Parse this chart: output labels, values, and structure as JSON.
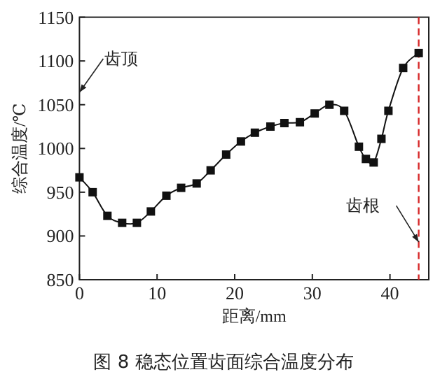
{
  "chart_data": {
    "type": "line",
    "xlabel": "距离/mm",
    "ylabel": "综合温度/℃",
    "x": [
      0,
      1.7,
      3.6,
      5.5,
      7.4,
      9.2,
      11.2,
      13.1,
      15.1,
      16.9,
      18.9,
      20.8,
      22.6,
      24.6,
      26.4,
      28.4,
      30.3,
      32.2,
      34.1,
      36,
      36.9,
      37.9,
      38.9,
      39.8,
      41.7,
      43.7
    ],
    "series": [
      {
        "color": "#111111",
        "values": [
          967,
          950,
          923,
          915,
          915,
          928,
          946,
          955,
          960,
          975,
          993,
          1008,
          1018,
          1025,
          1029,
          1030,
          1040,
          1050,
          1043,
          1002,
          988,
          984,
          1011,
          1043,
          1092,
          1109
        ]
      }
    ],
    "xlim": [
      0,
      45
    ],
    "xticks": [
      0,
      10,
      20,
      30,
      40
    ],
    "ylim": [
      850,
      1150
    ],
    "yticks": [
      850,
      900,
      950,
      1000,
      1050,
      1100,
      1150
    ],
    "marker": "square",
    "line_style": "solid",
    "grid": false,
    "ref_lines": [
      {
        "axis": "x",
        "value": 43.7,
        "color": "#d62728",
        "line_style": "dashed"
      }
    ],
    "annotations": [
      "齿顶",
      {
        "text": "齿根",
        "x": 43.7,
        "y": 893
      },
      "图 8 稳态位置齿面综合温度分布"
    ]
  }
}
